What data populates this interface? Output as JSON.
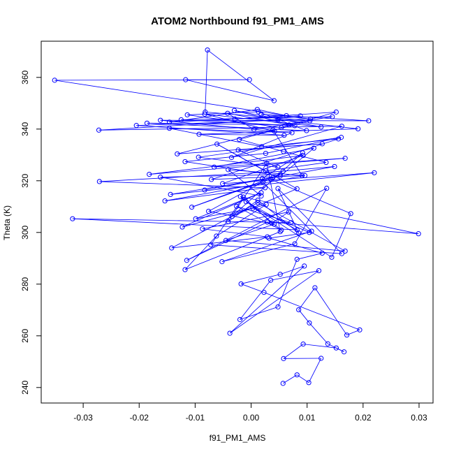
{
  "chart_data": {
    "type": "line",
    "style": "points and connecting lines (R plot type 'o')",
    "title": "ATOM2 Northbound f91_PM1_AMS",
    "xlabel": "f91_PM1_AMS",
    "ylabel": "Theta (K)",
    "xlim": [
      -0.0375,
      0.0325
    ],
    "ylim": [
      234,
      374
    ],
    "x_ticks": [
      -0.03,
      -0.02,
      -0.01,
      0.0,
      0.01,
      0.02,
      0.03
    ],
    "x_tick_labels": [
      "-0.03",
      "-0.02",
      "-0.01",
      "0.00",
      "0.01",
      "0.02",
      "0.03"
    ],
    "y_ticks": [
      240,
      260,
      280,
      300,
      320,
      340,
      360
    ],
    "y_tick_labels": [
      "240",
      "260",
      "280",
      "300",
      "320",
      "340",
      "360"
    ],
    "grid": false,
    "legend": null,
    "series": [
      {
        "name": "f91_PM1_AMS",
        "color": "#0000ff",
        "x": [
          0.0057,
          0.0082,
          0.0103,
          0.0125,
          0.0058,
          0.0093,
          0.0152,
          0.0166,
          0.0137,
          0.0104,
          0.0085,
          0.0114,
          0.0171,
          0.0194,
          0.0023,
          -0.0018,
          0.0052,
          0.0095,
          -0.0038,
          0.0121,
          0.0035,
          -0.002,
          0.0048,
          0.0082,
          0.0127,
          0.0032,
          0.0104,
          0.0003,
          -0.0099,
          0.0018,
          -0.0123,
          0.0027,
          -0.0062,
          -0.0118,
          0.0052,
          0.0028,
          -0.0041,
          0.0012,
          0.0085,
          0.0048,
          0.0162,
          -0.0072,
          -0.0014,
          0.0037,
          0.0067,
          -0.0087,
          0.0029,
          -0.0142,
          0.0012,
          0.0168,
          -0.0045,
          0.0041,
          -0.0076,
          0.0021,
          0.0108,
          -0.0052,
          0.0078,
          0.0135,
          -0.0115,
          0.0029,
          0.0299,
          -0.0019,
          0.0054,
          -0.0026,
          0.0071,
          -0.0319,
          0.0082,
          -0.0009,
          0.0144,
          0.0178,
          0.0035,
          -0.0106,
          0.0052,
          -0.0162,
          0.0018,
          -0.0041,
          0.0096,
          -0.0154,
          0.0025,
          -0.0271,
          0.0057,
          0.0149,
          -0.0083,
          0.0039,
          -0.0144,
          0.022,
          -0.0051,
          0.0093,
          -0.0182,
          0.0168,
          -0.0066,
          0.0112,
          0.0052,
          -0.0118,
          0.0026,
          0.0161,
          -0.0094,
          0.0048,
          -0.0023,
          0.0127,
          -0.0132,
          0.0039,
          0.0091,
          -0.0071,
          0.0156,
          0.0019,
          -0.0146,
          0.0073,
          -0.0035,
          0.0162,
          -0.0272,
          0.0048,
          0.0191,
          -0.0093,
          0.0059,
          -0.0205,
          0.0106,
          0.0018,
          0.021,
          -0.0162,
          0.0042,
          -0.0083,
          0.0125,
          -0.003,
          0.0078,
          -0.0125,
          0.0145,
          0.0005,
          -0.0042,
          0.0068,
          -0.0186,
          0.0099,
          0.0013,
          -0.0114,
          0.0054,
          0.0152,
          -0.0029,
          0.0088,
          -0.0146,
          0.0011,
          0.0063,
          -0.0351,
          -0.0003,
          -0.0117,
          0.0041,
          -0.0078,
          -0.0082,
          0.0105,
          -0.0021,
          0.0058,
          0.0134,
          0.0026,
          -0.0061,
          0.0082,
          -0.0034,
          0.0092,
          0.002
        ],
        "y": [
          241.6,
          244.9,
          241.9,
          251.3,
          251.2,
          256.8,
          255.3,
          253.8,
          256.9,
          265.0,
          270.1,
          278.6,
          260.3,
          262.3,
          276.8,
          280.1,
          283.8,
          287.0,
          261.0,
          285.2,
          281.5,
          266.3,
          271.2,
          289.6,
          292.0,
          297.8,
          300.0,
          309.4,
          305.3,
          315.4,
          302.1,
          310.8,
          298.6,
          285.6,
          300.3,
          326.8,
          304.2,
          312.5,
          299.8,
          317.0,
          291.8,
          295.2,
          313.7,
          303.6,
          307.9,
          301.4,
          298.3,
          294.0,
          311.5,
          292.8,
          296.9,
          303.2,
          308.2,
          319.5,
          300.5,
          288.7,
          295.6,
          317.1,
          289.2,
          304.0,
          299.5,
          313.9,
          300.9,
          310.1,
          303.8,
          305.3,
          301.0,
          311.9,
          290.4,
          307.3,
          320.6,
          309.8,
          322.4,
          321.4,
          314.1,
          324.3,
          322.0,
          312.2,
          317.3,
          319.7,
          323.7,
          325.5,
          316.4,
          321.3,
          314.7,
          323.1,
          318.9,
          329.8,
          322.5,
          328.7,
          325.3,
          332.6,
          321.8,
          327.4,
          330.6,
          336.8,
          329.1,
          325.2,
          331.9,
          334.3,
          330.4,
          339.7,
          322.0,
          320.5,
          336.2,
          333.2,
          340.3,
          338.6,
          329.0,
          341.1,
          339.6,
          343.7,
          340.1,
          338.0,
          337.6,
          341.4,
          343.9,
          345.7,
          343.2,
          343.4,
          339.1,
          345.8,
          340.8,
          347.2,
          341.3,
          343.6,
          344.8,
          339.9,
          346.1,
          341.6,
          342.3,
          339.4,
          346.7,
          345.5,
          340.6,
          346.6,
          343.9,
          345.1,
          342.7,
          347.6,
          345.2,
          358.9,
          359.1,
          359.1,
          351.0,
          370.6,
          346.6,
          343.2,
          336.0,
          331.3,
          327.1,
          323.8,
          334.2,
          316.9,
          306.2,
          330.8,
          320.9
        ]
      }
    ]
  }
}
